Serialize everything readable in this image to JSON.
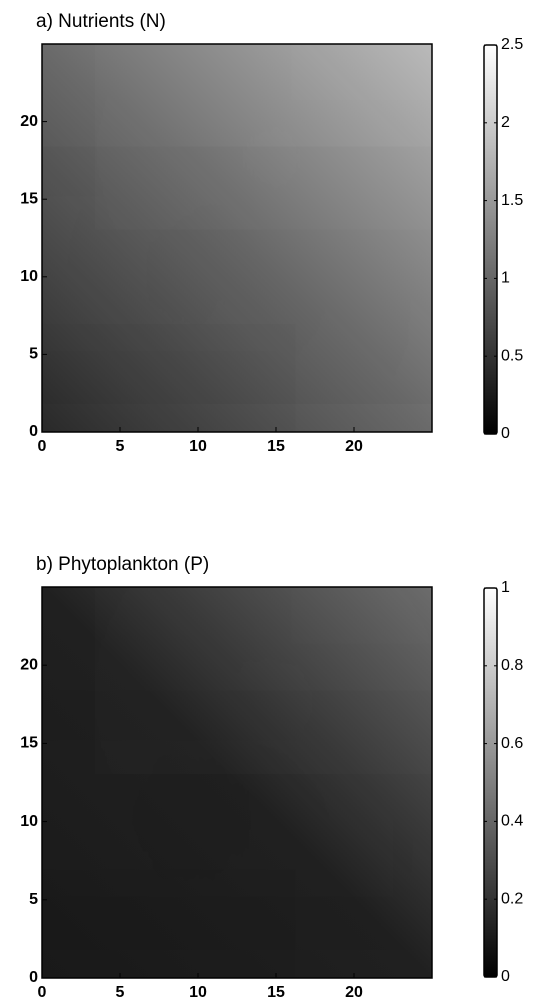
{
  "chart_data": [
    {
      "type": "heatmap",
      "title": "a) Nutrients (N)",
      "xlim": [
        0,
        25
      ],
      "xticks": [
        0,
        5,
        10,
        15,
        20
      ],
      "ylim": [
        0,
        25
      ],
      "yticks": [
        0,
        5,
        10,
        15,
        20
      ],
      "clim": [
        0,
        2.5
      ],
      "cticks": [
        0,
        0.5,
        1,
        1.5,
        2,
        2.5
      ]
    },
    {
      "type": "heatmap",
      "title": "b) Phytoplankton (P)",
      "xlim": [
        0,
        25
      ],
      "xticks": [
        0,
        5,
        10,
        15,
        20
      ],
      "ylim": [
        0,
        25
      ],
      "yticks": [
        0,
        5,
        10,
        15,
        20
      ],
      "clim": [
        0,
        1
      ],
      "cticks": [
        0,
        0.2,
        0.4,
        0.6,
        0.8,
        1
      ]
    }
  ]
}
